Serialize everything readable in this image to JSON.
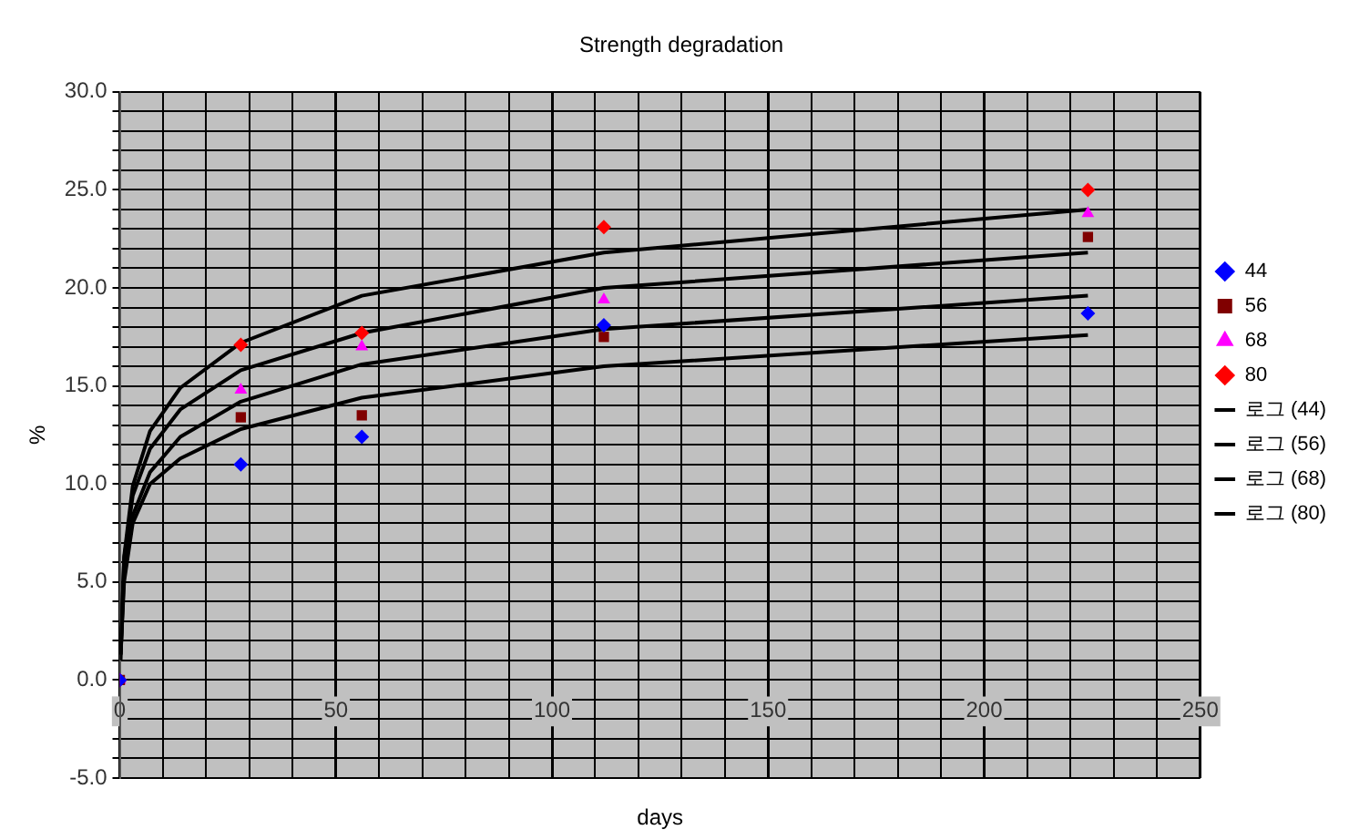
{
  "chart_data": {
    "type": "scatter",
    "title": "Strength degradation",
    "xlabel": "days",
    "ylabel": "%",
    "xlim": [
      0,
      250
    ],
    "xticks": [
      0,
      {
        "value": 10,
        "label": null
      },
      {
        "value": 20,
        "label": null
      },
      {
        "value": 30,
        "label": null
      },
      {
        "value": 40,
        "label": null
      },
      50,
      {
        "value": 60,
        "label": null
      },
      {
        "value": 70,
        "label": null
      },
      {
        "value": 80,
        "label": null
      },
      {
        "value": 90,
        "label": null
      },
      100,
      {
        "value": 110,
        "label": null
      },
      {
        "value": 120,
        "label": null
      },
      {
        "value": 130,
        "label": null
      },
      {
        "value": 140,
        "label": null
      },
      150,
      {
        "value": 160,
        "label": null
      },
      {
        "value": 170,
        "label": null
      },
      {
        "value": 180,
        "label": null
      },
      {
        "value": 190,
        "label": null
      },
      200,
      {
        "value": 210,
        "label": null
      },
      {
        "value": 220,
        "label": null
      },
      {
        "value": 230,
        "label": null
      },
      {
        "value": 240,
        "label": null
      },
      250
    ],
    "ylim": [
      -5,
      30
    ],
    "yticks": [
      {
        "value": -5,
        "label": "-5.0"
      },
      {
        "value": -4,
        "label": null
      },
      {
        "value": -3,
        "label": null
      },
      {
        "value": -2,
        "label": null
      },
      {
        "value": -1,
        "label": null
      },
      {
        "value": 0,
        "label": "0.0"
      },
      {
        "value": 1,
        "label": null
      },
      {
        "value": 2,
        "label": null
      },
      {
        "value": 3,
        "label": null
      },
      {
        "value": 4,
        "label": null
      },
      {
        "value": 5,
        "label": "5.0"
      },
      {
        "value": 6,
        "label": null
      },
      {
        "value": 7,
        "label": null
      },
      {
        "value": 8,
        "label": null
      },
      {
        "value": 9,
        "label": null
      },
      {
        "value": 10,
        "label": "10.0"
      },
      {
        "value": 11,
        "label": null
      },
      {
        "value": 12,
        "label": null
      },
      {
        "value": 13,
        "label": null
      },
      {
        "value": 14,
        "label": null
      },
      {
        "value": 15,
        "label": "15.0"
      },
      {
        "value": 16,
        "label": null
      },
      {
        "value": 17,
        "label": null
      },
      {
        "value": 18,
        "label": null
      },
      {
        "value": 19,
        "label": null
      },
      {
        "value": 20,
        "label": "20.0"
      },
      {
        "value": 21,
        "label": null
      },
      {
        "value": 22,
        "label": null
      },
      {
        "value": 23,
        "label": null
      },
      {
        "value": 24,
        "label": null
      },
      {
        "value": 25,
        "label": "25.0"
      },
      {
        "value": 26,
        "label": null
      },
      {
        "value": 27,
        "label": null
      },
      {
        "value": 28,
        "label": null
      },
      {
        "value": 29,
        "label": null
      },
      {
        "value": 30,
        "label": "30.0"
      }
    ],
    "grid": true,
    "legend": "right",
    "series": [
      {
        "name": "44",
        "type": "scatter",
        "marker": "diamond",
        "color": "#0000ff",
        "x": [
          0,
          28,
          56,
          112,
          224
        ],
        "values": [
          0,
          11.0,
          12.4,
          18.1,
          18.7
        ]
      },
      {
        "name": "56",
        "type": "scatter",
        "marker": "square",
        "color": "#800000",
        "x": [
          0,
          28,
          56,
          112,
          224
        ],
        "values": [
          0,
          13.4,
          13.5,
          17.5,
          22.6
        ]
      },
      {
        "name": "68",
        "type": "scatter",
        "marker": "triangle",
        "color": "#ff00ff",
        "x": [
          0,
          28,
          56,
          112,
          224
        ],
        "values": [
          0,
          14.8,
          17.0,
          19.4,
          23.8
        ]
      },
      {
        "name": "80",
        "type": "scatter",
        "marker": "diamond",
        "color": "#ff0000",
        "x": [
          0,
          28,
          56,
          112,
          224
        ],
        "values": [
          0,
          17.1,
          17.7,
          23.1,
          25.0
        ]
      },
      {
        "name": "로그 (44)",
        "type": "line",
        "marker": "none",
        "color": "#000000",
        "x": [
          0.2,
          1,
          3,
          7,
          14,
          28,
          56,
          112,
          224
        ],
        "values": [
          1.3,
          5.0,
          8.0,
          10.0,
          11.3,
          12.8,
          14.4,
          16.0,
          17.6
        ]
      },
      {
        "name": "로그 (56)",
        "type": "line",
        "marker": "none",
        "color": "#000000",
        "x": [
          0.2,
          1,
          3,
          7,
          14,
          28,
          56,
          112,
          224
        ],
        "values": [
          1.3,
          5.5,
          8.4,
          10.6,
          12.4,
          14.2,
          16.1,
          17.9,
          19.6
        ]
      },
      {
        "name": "로그 (68)",
        "type": "line",
        "marker": "none",
        "color": "#000000",
        "x": [
          0.2,
          1,
          3,
          7,
          14,
          28,
          56,
          112,
          224
        ],
        "values": [
          1.5,
          6.2,
          9.4,
          11.8,
          13.8,
          15.8,
          17.7,
          20.0,
          21.8
        ]
      },
      {
        "name": "로그 (80)",
        "type": "line",
        "marker": "none",
        "color": "#000000",
        "x": [
          0.2,
          1,
          3,
          7,
          14,
          28,
          56,
          112,
          224
        ],
        "values": [
          1.0,
          6.3,
          9.9,
          12.7,
          14.9,
          17.2,
          19.6,
          21.8,
          24.0
        ]
      }
    ]
  }
}
